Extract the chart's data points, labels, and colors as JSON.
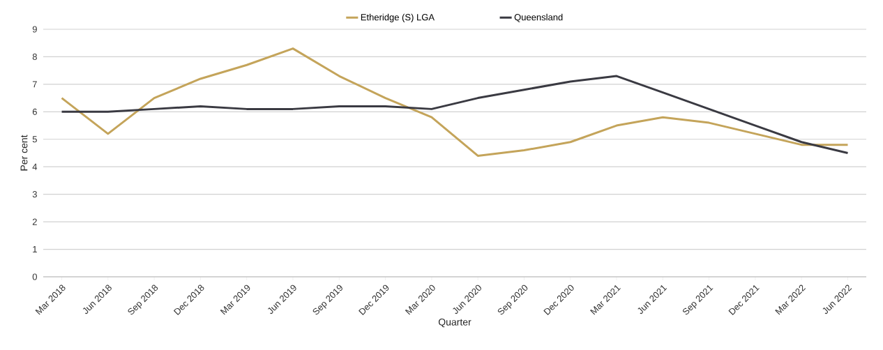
{
  "chart_data": {
    "type": "line",
    "xlabel": "Quarter",
    "ylabel": "Per cent",
    "categories": [
      "Mar 2018",
      "Jun 2018",
      "Sep 2018",
      "Dec 2018",
      "Mar 2019",
      "Jun 2019",
      "Sep 2019",
      "Dec 2019",
      "Mar 2020",
      "Jun 2020",
      "Sep 2020",
      "Dec 2020",
      "Mar 2021",
      "Jun 2021",
      "Sep 2021",
      "Dec 2021",
      "Mar 2022",
      "Jun 2022"
    ],
    "series": [
      {
        "name": "Etheridge (S) LGA",
        "color": "#c4a45a",
        "values": [
          6.5,
          5.2,
          6.5,
          7.2,
          7.7,
          8.3,
          7.3,
          6.5,
          5.8,
          4.4,
          4.6,
          4.9,
          5.5,
          5.8,
          5.6,
          5.2,
          4.8,
          4.8
        ]
      },
      {
        "name": "Queensland",
        "color": "#3a3a42",
        "values": [
          6.0,
          6.0,
          6.1,
          6.2,
          6.1,
          6.1,
          6.2,
          6.2,
          6.1,
          6.5,
          6.8,
          7.1,
          7.3,
          6.7,
          6.1,
          5.5,
          4.9,
          4.5
        ]
      }
    ],
    "ylim": [
      0,
      9
    ],
    "yticks": [
      0,
      1,
      2,
      3,
      4,
      5,
      6,
      7,
      8,
      9
    ],
    "grid": "y",
    "legend": "top",
    "marker": "none",
    "line_style": "solid"
  }
}
